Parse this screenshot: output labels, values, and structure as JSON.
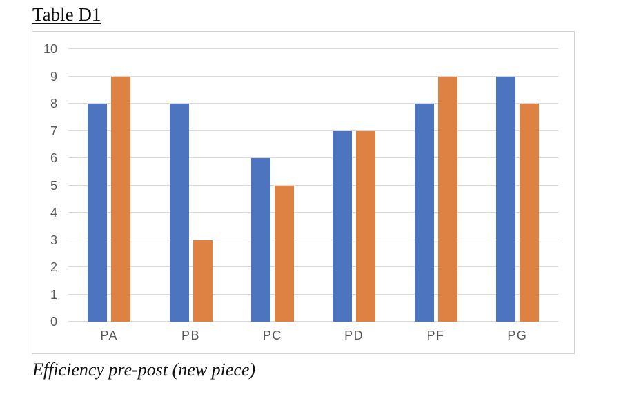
{
  "title": "Table D1",
  "caption": "Efficiency pre-post (new piece)",
  "colors": {
    "series_pre": "#4C74BF",
    "series_post": "#DE8244",
    "gridline": "#d9d9d9",
    "axis_text": "#595959",
    "frame_border": "#d2d2d2",
    "background": "#ffffff"
  },
  "chart_data": {
    "type": "bar",
    "title": "Table D1",
    "subtitle": "Efficiency pre-post (new piece)",
    "categories": [
      "PA",
      "PB",
      "PC",
      "PD",
      "PF",
      "PG"
    ],
    "series": [
      {
        "name": "pre",
        "color": "#4C74BF",
        "values": [
          8,
          8,
          6,
          7,
          8,
          9
        ]
      },
      {
        "name": "post",
        "color": "#DE8244",
        "values": [
          9,
          3,
          5,
          7,
          9,
          8
        ]
      }
    ],
    "xlabel": "",
    "ylabel": "",
    "ylim": [
      0,
      10
    ],
    "yticks": [
      0,
      1,
      2,
      3,
      4,
      5,
      6,
      7,
      8,
      9,
      10
    ],
    "grid": true,
    "legend": false
  }
}
